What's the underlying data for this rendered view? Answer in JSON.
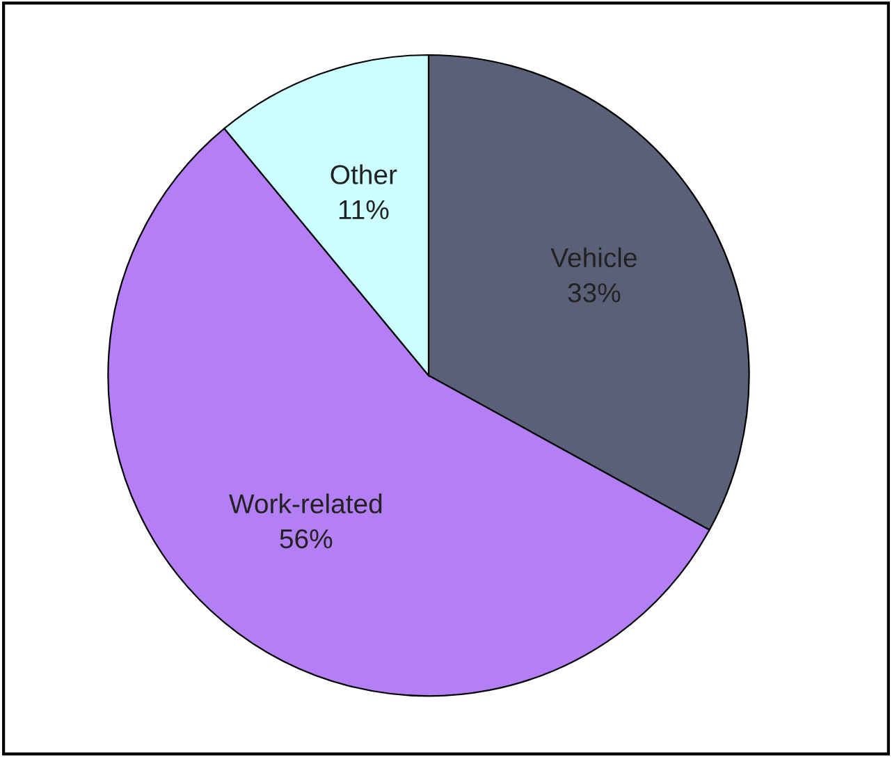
{
  "chart_data": {
    "type": "pie",
    "categories": [
      "Vehicle",
      "Work-related",
      "Other"
    ],
    "values": [
      33,
      56,
      11
    ],
    "colors": [
      "#5a6078",
      "#b47ff5",
      "#ccffff"
    ],
    "value_labels": [
      "33%",
      "56%",
      "11%"
    ]
  }
}
